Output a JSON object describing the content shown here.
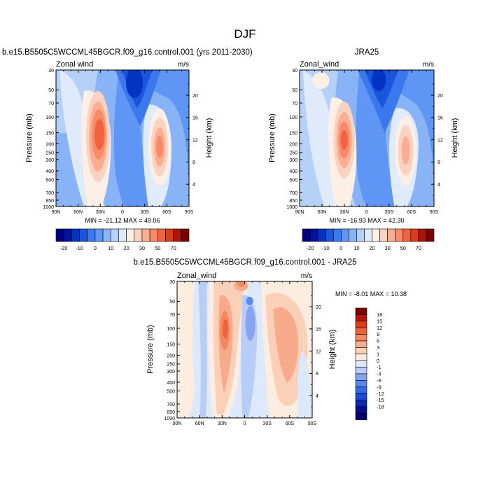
{
  "figure": {
    "title": "DJF"
  },
  "colors": {
    "wind_levels": [
      -20,
      -15,
      -10,
      -5,
      0,
      5,
      10,
      15,
      20,
      25,
      30,
      40,
      50,
      60,
      70
    ],
    "wind_palette": [
      "#000080",
      "#00129f",
      "#0533c1",
      "#1a56dd",
      "#3b78ee",
      "#5f95f4",
      "#88b3f6",
      "#b5d1f7",
      "#dfeafa",
      "#fcefe6",
      "#fbd2bf",
      "#f9ae92",
      "#f78a68",
      "#f0633f",
      "#d93d1c",
      "#a8150a",
      "#7a0000"
    ],
    "diff_levels": [
      -18,
      -15,
      -12,
      -9,
      -6,
      -3,
      -1,
      0,
      1,
      3,
      6,
      9,
      12,
      15,
      18
    ],
    "diff_palette": [
      "#00006b",
      "#000f91",
      "#0528b8",
      "#174bd8",
      "#3569e8",
      "#5a86ee",
      "#85a5f0",
      "#b8cdf5",
      "#dce8fb",
      "#fdece0",
      "#fbd0b8",
      "#f8ab8a",
      "#f58861",
      "#ef6338",
      "#db3e16",
      "#b3180a",
      "#7d0000"
    ]
  },
  "chart_data": [
    {
      "type": "heatmap",
      "title": "b.e15.B5505C5WCCML45BGCR.f09_g16.control.001 (yrs 2011-2030)",
      "left_label": "Zonal wind",
      "right_label": "m/s",
      "ylabel": "Pressure (mb)",
      "ylabel_right": "Height (km)",
      "x_ticks": [
        "90N",
        "60N",
        "30N",
        "0",
        "30S",
        "60S",
        "90S"
      ],
      "x_range": [
        90,
        -90
      ],
      "y_ticks": [
        "30",
        "50",
        "70",
        "100",
        "150",
        "200",
        "250",
        "300",
        "400",
        "500",
        "700",
        "850",
        "1000"
      ],
      "y_range_mb": [
        30,
        1000
      ],
      "y_log": true,
      "height_ticks": [
        "20",
        "16",
        "12",
        "8",
        "4"
      ],
      "stats": "MIN = -21.12  MAX =  49.06",
      "min": -21.12,
      "max": 49.06,
      "colorbar_labels": [
        "-20",
        "-10",
        "0",
        "10",
        "20",
        "30",
        "50",
        "70"
      ],
      "colorbar_orientation": "horizontal"
    },
    {
      "type": "heatmap",
      "title": "JRA25",
      "left_label": "Zonal_wind",
      "right_label": "m/s",
      "ylabel": "Pressure (mb)",
      "ylabel_right": "Height (km)",
      "x_ticks": [
        "90N",
        "60N",
        "30N",
        "0",
        "30S",
        "60S",
        "90S"
      ],
      "x_range": [
        90,
        -90
      ],
      "y_ticks": [
        "30",
        "50",
        "70",
        "100",
        "150",
        "200",
        "250",
        "300",
        "400",
        "500",
        "700",
        "850",
        "1000"
      ],
      "y_range_mb": [
        30,
        1000
      ],
      "y_log": true,
      "height_ticks": [
        "20",
        "16",
        "12",
        "8",
        "4"
      ],
      "stats": "MIN = -16.93  MAX =  42.30",
      "min": -16.93,
      "max": 42.3,
      "colorbar_labels": [
        "-20",
        "-10",
        "0",
        "10",
        "20",
        "30",
        "50",
        "70"
      ],
      "colorbar_orientation": "horizontal"
    },
    {
      "type": "heatmap",
      "title": "b.e15.B5505C5WCCML45BGCR.f09_g16.control.001 - JRA25",
      "left_label": "Zonal_wind",
      "right_label": "m/s",
      "ylabel": "Pressure (mb)",
      "ylabel_right": "Height (km)",
      "x_ticks": [
        "90N",
        "60N",
        "30N",
        "0",
        "30S",
        "60S",
        "90S"
      ],
      "x_range": [
        90,
        -90
      ],
      "y_ticks": [
        "30",
        "50",
        "70",
        "100",
        "150",
        "200",
        "250",
        "300",
        "400",
        "500",
        "700",
        "850",
        "1000"
      ],
      "y_range_mb": [
        30,
        1000
      ],
      "y_log": true,
      "height_ticks": [
        "20",
        "16",
        "12",
        "8",
        "4"
      ],
      "stats": "MIN =  -8.01  MAX =  10.38",
      "min": -8.01,
      "max": 10.38,
      "colorbar_labels": [
        "18",
        "15",
        "12",
        "9",
        "6",
        "3",
        "1",
        "0",
        "-1",
        "-3",
        "-6",
        "-9",
        "-12",
        "-15",
        "-18"
      ],
      "colorbar_orientation": "vertical"
    }
  ]
}
